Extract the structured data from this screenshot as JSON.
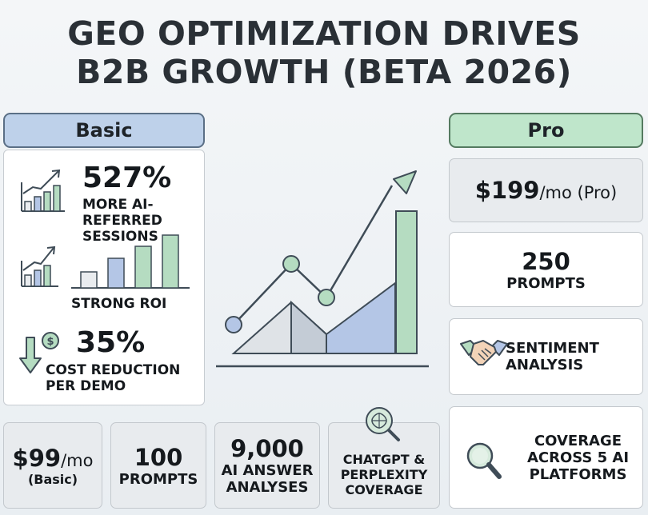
{
  "title": {
    "line1": "GEO OPTIMIZATION DRIVES",
    "line2": "B2B GROWTH (BETA 2026)"
  },
  "basic": {
    "header": "Basic",
    "stat1_value": "527%",
    "stat1_caption_line1": "MORE AI-REFERRED",
    "stat1_caption_line2": "SESSIONS",
    "stat2_caption": "STRONG ROI",
    "stat3_value": "35%",
    "stat3_caption_line1": "COST REDUCTION",
    "stat3_caption_line2": "PER DEMO",
    "price_value": "$99",
    "price_unit": "/mo",
    "price_tier": "(Basic)",
    "prompts_value": "100",
    "prompts_label": "PROMPTS",
    "analyses_value": "9,000",
    "analyses_line1": "AI ANSWER",
    "analyses_line2": "ANALYSES",
    "coverage_line1": "CHATGPT &",
    "coverage_line2": "PERPLEXITY",
    "coverage_line3": "COVERAGE"
  },
  "pro": {
    "header": "Pro",
    "price_value": "$199",
    "price_unit": "/mo (Pro)",
    "prompts_value": "250",
    "prompts_label": "PROMPTS",
    "sentiment_line1": "SENTIMENT",
    "sentiment_line2": "ANALYSIS",
    "coverage_line1": "COVERAGE",
    "coverage_line2": "ACROSS 5 AI",
    "coverage_line3": "PLATFORMS"
  },
  "icons": {
    "stat1": "bar-chart-up-icon",
    "stat2": "bar-chart-up-icon",
    "stat3": "down-arrow-dollar-icon",
    "coverage_basic": "ai-magnifier-icon",
    "sentiment": "handshake-icon",
    "coverage_pro": "magnifier-icon"
  },
  "colors": {
    "basic_accent": "#bed1ea",
    "pro_accent": "#bfe6cb",
    "line_dark": "#3f4c57",
    "blue_marker": "#b4c6e6",
    "green_marker": "#b5dcc1"
  }
}
